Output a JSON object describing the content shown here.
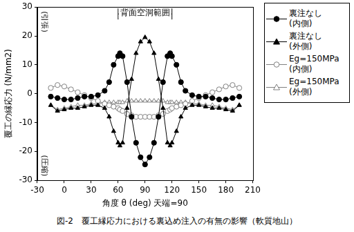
{
  "chart_data": {
    "type": "line",
    "caption": "図-2　覆工縁応力における裏込め注入の有無の影響（軟質地山）",
    "x_label": "角度 θ (deg) 天端=90",
    "y_label": "覆工の縁応力 (N/mm2)",
    "xlim": [
      -30,
      210
    ],
    "xticks": [
      -30,
      0,
      30,
      60,
      90,
      120,
      150,
      180,
      210
    ],
    "ylim": [
      -30,
      30
    ],
    "yticks": [
      -30,
      -20,
      -10,
      0,
      10,
      20,
      30
    ],
    "grid": false,
    "legend": "right",
    "annotations": [
      {
        "text": "(引張)"
      },
      {
        "text": "(圧縮)"
      },
      {
        "text": "背面空洞範囲",
        "x_range": [
          60,
          120
        ]
      }
    ],
    "x": [
      -15,
      -7.5,
      0,
      7.5,
      15,
      22.5,
      30,
      37.5,
      45,
      50,
      55,
      60,
      62,
      65,
      70,
      75,
      80,
      85,
      90,
      95,
      100,
      105,
      110,
      115,
      118,
      120,
      125,
      130,
      135,
      142.5,
      150,
      157.5,
      165,
      172.5,
      180,
      187.5,
      195
    ],
    "series": [
      {
        "name": "裏注なし(内側)",
        "color": "#000000",
        "marker": "circle",
        "line_style": "solid",
        "values": [
          -1,
          -1.5,
          -2,
          -2,
          -1.5,
          -1,
          -1,
          -0.5,
          1,
          4,
          10,
          13,
          14,
          13,
          4,
          -8,
          -17,
          -22,
          -24.5,
          -22,
          -17,
          -8,
          4,
          13,
          14,
          13,
          10,
          4,
          1,
          -0.5,
          -1,
          -1,
          -1.5,
          -2,
          -2,
          -1.5,
          -1
        ]
      },
      {
        "name": "裏注なし(外側)",
        "color": "#000000",
        "marker": "triangle",
        "line_style": "solid",
        "values": [
          -4,
          -6,
          -5.5,
          -5,
          -5,
          -4.5,
          -4,
          -4,
          -5,
          -8,
          -13,
          -17,
          -18,
          -17,
          -5,
          5,
          14,
          18,
          19.5,
          18,
          14,
          5,
          -5,
          -17,
          -18,
          -17,
          -13,
          -8,
          -5,
          -4,
          -4,
          -4.5,
          -5,
          -5,
          -5.5,
          -6,
          -4
        ]
      },
      {
        "name": "Eg=150MPa(内側)",
        "color": "#808080",
        "marker": "circle-open",
        "line_style": "solid",
        "values": [
          2,
          3,
          2.5,
          1.5,
          0.5,
          -0.5,
          -1.5,
          -2.5,
          -3.5,
          -4,
          -4.5,
          -5,
          -5.5,
          -6,
          -7,
          -7.5,
          -8,
          -8,
          -8,
          -8,
          -8,
          -7.5,
          -7,
          -6,
          -5.5,
          -5,
          -4.5,
          -4,
          -3.5,
          -2.5,
          -1.5,
          -0.5,
          0.5,
          1.5,
          2.5,
          3,
          2
        ]
      },
      {
        "name": "Eg=150MPa(外側)",
        "color": "#808080",
        "marker": "triangle-open",
        "line_style": "solid",
        "values": [
          -4,
          -5.5,
          -5,
          -4.5,
          -4,
          -4,
          -3.5,
          -3.5,
          -3,
          -3,
          -3,
          -3,
          -3,
          -3,
          -2.5,
          -2.5,
          -2.5,
          -2.5,
          -2.5,
          -2.5,
          -2.5,
          -2.5,
          -2.5,
          -3,
          -3,
          -3,
          -3,
          -3,
          -3,
          -3.5,
          -3.5,
          -4,
          -4,
          -4.5,
          -5,
          -5.5,
          -4
        ]
      }
    ]
  }
}
